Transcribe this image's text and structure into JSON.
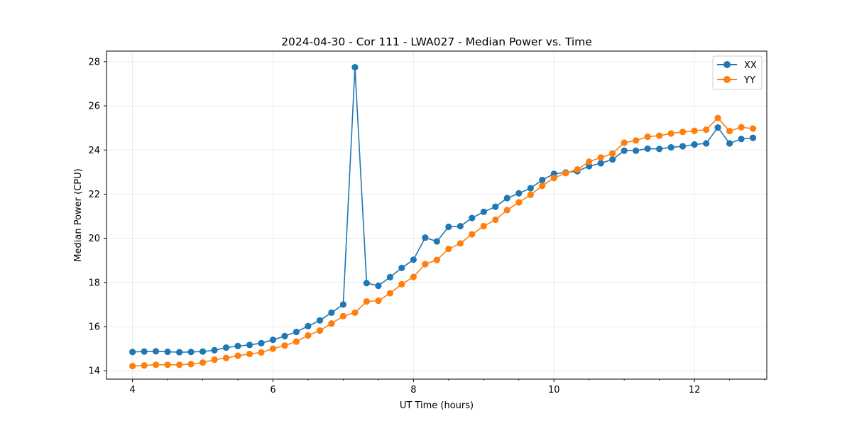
{
  "chart_data": {
    "type": "line",
    "title": "2024-04-30 - Cor 111 - LWA027 - Median Power vs. Time",
    "xlabel": "UT Time (hours)",
    "ylabel": "Median Power (CPU)",
    "xlim": [
      3.63,
      13.03
    ],
    "ylim": [
      13.62,
      28.48
    ],
    "xticks": [
      4,
      6,
      8,
      10,
      12
    ],
    "yticks": [
      14,
      16,
      18,
      20,
      22,
      24,
      26,
      28
    ],
    "grid": true,
    "legend_position": "top-right",
    "x": [
      4.0,
      4.167,
      4.333,
      4.5,
      4.667,
      4.833,
      5.0,
      5.167,
      5.333,
      5.5,
      5.667,
      5.833,
      6.0,
      6.167,
      6.333,
      6.5,
      6.667,
      6.833,
      7.0,
      7.167,
      7.333,
      7.5,
      7.667,
      7.833,
      8.0,
      8.167,
      8.333,
      8.5,
      8.667,
      8.833,
      9.0,
      9.167,
      9.333,
      9.5,
      9.667,
      9.833,
      10.0,
      10.167,
      10.333,
      10.5,
      10.667,
      10.833,
      11.0,
      11.167,
      11.333,
      11.5,
      11.667,
      11.833,
      12.0,
      12.167,
      12.333,
      12.5,
      12.667,
      12.833
    ],
    "series": [
      {
        "name": "XX",
        "color": "#1f77b4",
        "values": [
          14.85,
          14.87,
          14.88,
          14.86,
          14.84,
          14.85,
          14.87,
          14.93,
          15.05,
          15.12,
          15.17,
          15.25,
          15.4,
          15.57,
          15.76,
          16.02,
          16.28,
          16.63,
          17.0,
          27.75,
          17.97,
          17.85,
          18.24,
          18.66,
          19.03,
          20.03,
          19.86,
          20.52,
          20.55,
          20.92,
          21.2,
          21.43,
          21.82,
          22.04,
          22.27,
          22.64,
          22.92,
          22.98,
          23.04,
          23.27,
          23.4,
          23.57,
          23.97,
          23.97,
          24.06,
          24.05,
          24.12,
          24.17,
          24.25,
          24.3,
          25.02,
          24.3,
          24.5,
          24.55
        ]
      },
      {
        "name": "YY",
        "color": "#ff7f0e",
        "values": [
          14.21,
          14.24,
          14.27,
          14.27,
          14.27,
          14.3,
          14.37,
          14.5,
          14.58,
          14.68,
          14.76,
          14.83,
          15.0,
          15.14,
          15.32,
          15.6,
          15.82,
          16.14,
          16.47,
          16.63,
          17.14,
          17.17,
          17.51,
          17.92,
          18.25,
          18.83,
          19.02,
          19.52,
          19.77,
          20.18,
          20.55,
          20.84,
          21.28,
          21.63,
          21.97,
          22.38,
          22.73,
          22.95,
          23.12,
          23.47,
          23.66,
          23.84,
          24.33,
          24.43,
          24.6,
          24.65,
          24.75,
          24.82,
          24.87,
          24.92,
          25.45,
          24.86,
          25.03,
          24.97
        ]
      }
    ]
  }
}
